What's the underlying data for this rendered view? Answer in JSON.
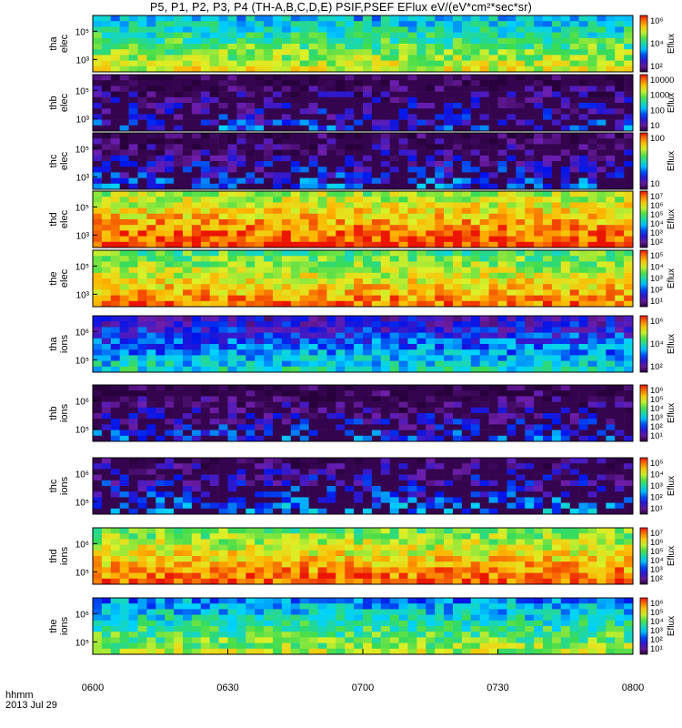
{
  "title": "P5, P1, P2, P3, P4 (TH-A,B,C,D,E) PSIF,PSEF EFlux eV/(eV*cm²*sec*sr)",
  "footer": {
    "line1": "hhmm",
    "line2": "2013 Jul 29"
  },
  "chart_data": {
    "type": "heatmap",
    "title": "P5, P1, P2, P3, P4 (TH-A,B,C,D,E) PSIF,PSEF EFlux eV/(eV*cm²*sec*sr)",
    "x_ticks": [
      "0600",
      "0630",
      "0700",
      "0730",
      "0800"
    ],
    "x_range": [
      "06:00",
      "08:00"
    ],
    "date": "2013 Jul 29",
    "colorscale": "rainbow (purple-blue-cyan-green-yellow-red)",
    "panels": [
      {
        "ylabel": [
          "tha",
          "elec"
        ],
        "yticks": [
          "10⁵",
          "10³"
        ],
        "cb_label": "Eflux",
        "cb_ticks": [
          "10⁶",
          "10⁴",
          "10²"
        ],
        "level": 0.55
      },
      {
        "ylabel": [
          "thb",
          "elec"
        ],
        "yticks": [
          "10⁵",
          "10³"
        ],
        "cb_label": "Eflux",
        "cb_ticks": [
          "10000",
          "1000",
          "100",
          "10"
        ],
        "level": 0.12
      },
      {
        "ylabel": [
          "thc",
          "elec"
        ],
        "yticks": [
          "10⁵",
          "10³"
        ],
        "cb_label": "Eflux",
        "cb_ticks": [
          "100",
          "10"
        ],
        "level": 0.15
      },
      {
        "ylabel": [
          "thd",
          "elec"
        ],
        "yticks": [
          "10⁵",
          "10³"
        ],
        "cb_label": "Eflux",
        "cb_ticks": [
          "10⁷",
          "10⁶",
          "10⁵",
          "10⁴",
          "10³",
          "10²"
        ],
        "level": 0.8
      },
      {
        "ylabel": [
          "the",
          "elec"
        ],
        "yticks": [
          "10⁵",
          "10³"
        ],
        "cb_label": "Eflux",
        "cb_ticks": [
          "10⁵",
          "10⁴",
          "10³",
          "10²",
          "10¹"
        ],
        "level": 0.72
      },
      {
        "ylabel": [
          "tha",
          "ions"
        ],
        "yticks": [
          "10⁶",
          "10⁵"
        ],
        "cb_label": "Eflux",
        "cb_ticks": [
          "10⁶",
          "10⁴",
          "10²"
        ],
        "level": 0.3
      },
      {
        "ylabel": [
          "thb",
          "ions"
        ],
        "yticks": [
          "10⁶",
          "10⁵"
        ],
        "cb_label": "Eflux",
        "cb_ticks": [
          "10⁶",
          "10⁵",
          "10⁴",
          "10³",
          "10²",
          "10¹"
        ],
        "level": 0.12
      },
      {
        "ylabel": [
          "thc",
          "ions"
        ],
        "yticks": [
          "10⁶",
          "10⁵"
        ],
        "cb_label": "Eflux",
        "cb_ticks": [
          "10⁵",
          "10⁴",
          "10³",
          "10²",
          "10¹"
        ],
        "level": 0.2
      },
      {
        "ylabel": [
          "thd",
          "ions"
        ],
        "yticks": [
          "10⁶",
          "10⁵"
        ],
        "cb_label": "Eflux",
        "cb_ticks": [
          "10⁷",
          "10⁶",
          "10⁵",
          "10⁴",
          "10³",
          "10²"
        ],
        "level": 0.75
      },
      {
        "ylabel": [
          "the",
          "ions"
        ],
        "yticks": [
          "10⁶",
          "10⁵"
        ],
        "cb_label": "Eflux",
        "cb_ticks": [
          "10⁶",
          "10⁵",
          "10⁴",
          "10³",
          "10²",
          "10¹"
        ],
        "level": 0.5
      }
    ]
  }
}
